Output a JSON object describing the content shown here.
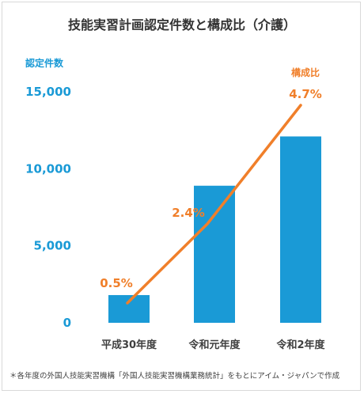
{
  "title": "技能実習計画認定件数と構成比（介護）",
  "footnote": "＊各年度の外国人技能実習機構「外国人技能実習機構業務統計」をもとにアイム・ジャパンで作成",
  "colors": {
    "bar": "#1a9ad6",
    "line": "#f07f2a",
    "axis_text": "#1a9ad6",
    "title": "#333333"
  },
  "chart_data": {
    "type": "bar",
    "title": "技能実習計画認定件数と構成比（介護）",
    "ylabel": "認定件数",
    "y2label": "構成比",
    "categories": [
      "平成30年度",
      "令和元年度",
      "令和2年度"
    ],
    "y_ticks": [
      "15,000",
      "10,000",
      "5,000",
      "0"
    ],
    "ylim": [
      0,
      15000
    ],
    "grid": false,
    "series": [
      {
        "name": "認定件数",
        "type": "bar",
        "values": [
          1800,
          8900,
          12100
        ]
      },
      {
        "name": "構成比",
        "type": "line",
        "values": [
          0.5,
          2.4,
          4.7
        ],
        "labels": [
          "0.5%",
          "2.4%",
          "4.7%"
        ]
      }
    ]
  }
}
